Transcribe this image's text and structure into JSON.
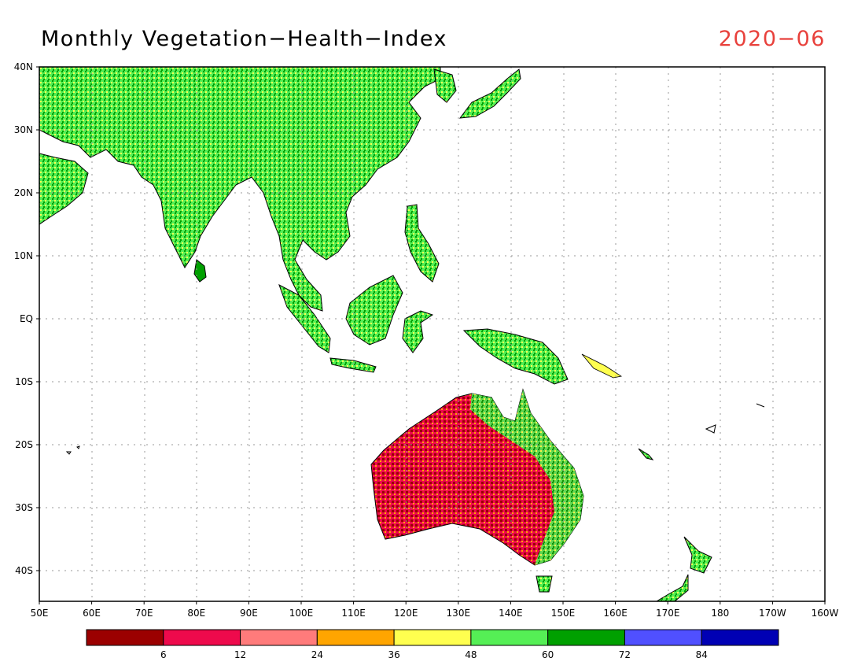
{
  "header": {
    "title": "Monthly Vegetation−Health−Index",
    "date": "2020−06"
  },
  "map": {
    "lon_range": [
      50,
      200
    ],
    "lat_range": [
      -45,
      40
    ],
    "lat_labels": [
      "40N",
      "30N",
      "20N",
      "10N",
      "EQ",
      "10S",
      "20S",
      "30S",
      "40S"
    ],
    "lon_labels": [
      "50E",
      "60E",
      "70E",
      "80E",
      "90E",
      "100E",
      "110E",
      "120E",
      "130E",
      "140E",
      "150E",
      "160E",
      "170E",
      "180",
      "170W",
      "160W"
    ]
  },
  "legend": {
    "colors": [
      "#9b0000",
      "#ee0a4c",
      "#ff7b7b",
      "#ffa500",
      "#ffff4f",
      "#55ef55",
      "#00a000",
      "#5050ff",
      "#0000b4"
    ],
    "labels": [
      "6",
      "12",
      "24",
      "36",
      "48",
      "60",
      "72",
      "84"
    ]
  }
}
